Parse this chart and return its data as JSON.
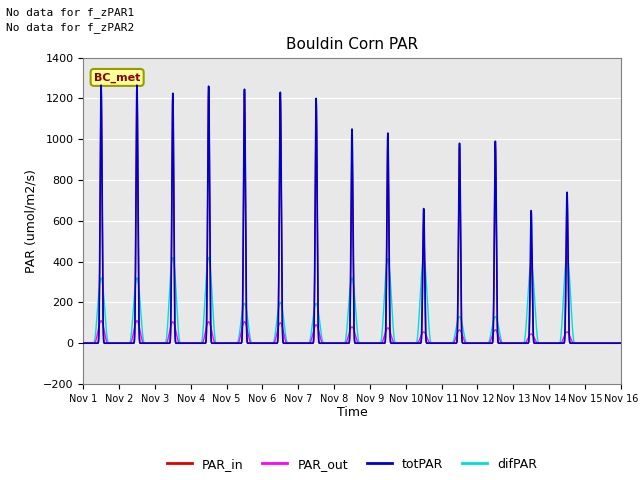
{
  "title": "Bouldin Corn PAR",
  "xlabel": "Time",
  "ylabel": "PAR (umol/m2/s)",
  "ylim": [
    -200,
    1400
  ],
  "xlim": [
    0,
    15
  ],
  "xtick_labels": [
    "Nov 1",
    "Nov 2",
    "Nov 3",
    "Nov 4",
    "Nov 5",
    "Nov 6",
    "Nov 7",
    "Nov 8",
    "Nov 9",
    "Nov 10",
    "Nov 11",
    "Nov 12",
    "Nov 13",
    "Nov 14",
    "Nov 15",
    "Nov 16"
  ],
  "ytick_values": [
    -200,
    0,
    200,
    400,
    600,
    800,
    1000,
    1200,
    1400
  ],
  "bg_color": "#e8e8e8",
  "no_data_text1": "No data for f_zPAR1",
  "no_data_text2": "No data for f_zPAR2",
  "bc_met_label": "BC_met",
  "line_colors": {
    "PAR_in": "#dd0000",
    "PAR_out": "#ff00ff",
    "totPAR": "#0000cc",
    "difPAR": "#00dddd"
  },
  "daily_peaks": {
    "totPAR": [
      1265,
      1265,
      1225,
      1260,
      1245,
      1230,
      1200,
      1050,
      1030,
      660,
      980,
      990,
      650,
      740
    ],
    "PAR_in": [
      1250,
      1255,
      1205,
      1245,
      1230,
      1215,
      1185,
      950,
      990,
      595,
      960,
      975,
      490,
      720
    ],
    "PAR_out": [
      110,
      110,
      105,
      105,
      105,
      100,
      90,
      80,
      75,
      55,
      65,
      65,
      45,
      55
    ],
    "difPAR": [
      320,
      320,
      420,
      420,
      195,
      200,
      195,
      320,
      415,
      415,
      130,
      130,
      385,
      430
    ]
  },
  "n_days": 15
}
